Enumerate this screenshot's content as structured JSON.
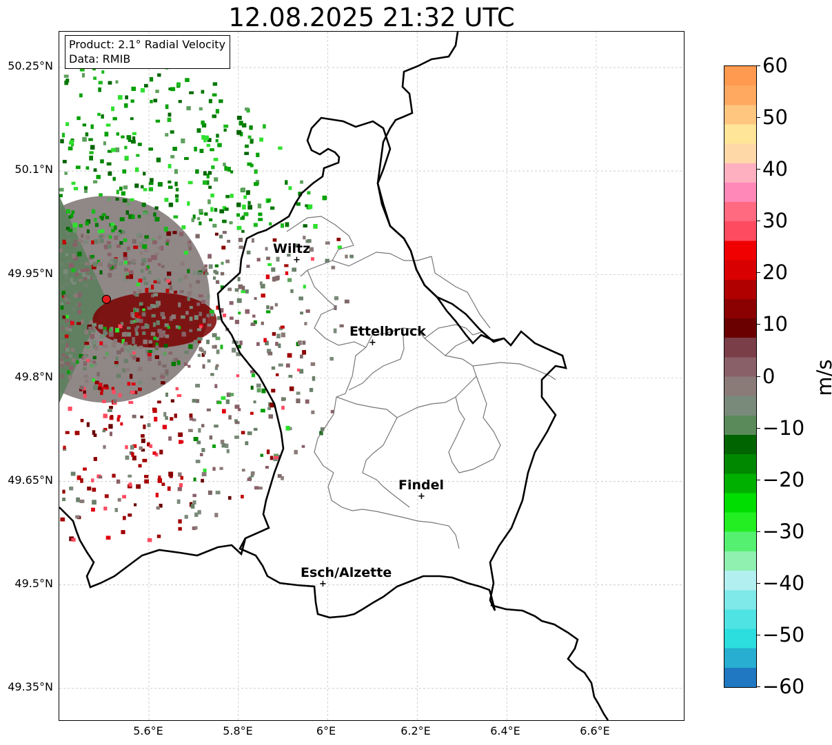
{
  "title": "12.08.2025 21:32 UTC",
  "info": {
    "product": "Product: 2.1° Radial Velocity",
    "data": "Data: RMIB"
  },
  "lat_labels": [
    "50.25°N",
    "50.1°N",
    "49.95°N",
    "49.8°N",
    "49.65°N",
    "49.5°N",
    "49.35°N"
  ],
  "lon_labels": [
    "5.6°E",
    "5.8°E",
    "6°E",
    "6.2°E",
    "6.4°E",
    "6.6°E"
  ],
  "cities": [
    {
      "name": "Wiltz",
      "lon": 5.93,
      "lat": 49.966
    },
    {
      "name": "Ettelbruck",
      "lon": 6.1,
      "lat": 49.847
    },
    {
      "name": "Findel",
      "lon": 6.21,
      "lat": 49.626
    },
    {
      "name": "Esch/Alzette",
      "lon": 5.99,
      "lat": 49.499
    }
  ],
  "radar": {
    "lon": 5.505,
    "lat": 49.914
  },
  "colorbar": {
    "label": "m/s",
    "ticks": [
      "60",
      "50",
      "40",
      "30",
      "20",
      "10",
      "0",
      "−10",
      "−20",
      "−30",
      "−40",
      "−50",
      "−60"
    ],
    "min": -60,
    "max": 60,
    "colors": [
      "#1f78c1",
      "#27aed0",
      "#2cdede",
      "#50e3e3",
      "#7fe8e8",
      "#b2eff0",
      "#90f0b0",
      "#55f070",
      "#22ee22",
      "#00dd00",
      "#00b000",
      "#008800",
      "#006400",
      "#5a8a5a",
      "#7a8a7a",
      "#8a7a78",
      "#8a6068",
      "#7a3e48",
      "#6a0000",
      "#8b0000",
      "#b00000",
      "#d80000",
      "#f00000",
      "#ff4b60",
      "#ff6a80",
      "#ff88b8",
      "#ffb0c0",
      "#ffd8a8",
      "#ffe598",
      "#ffc680",
      "#ffa860",
      "#ff9a50"
    ]
  }
}
